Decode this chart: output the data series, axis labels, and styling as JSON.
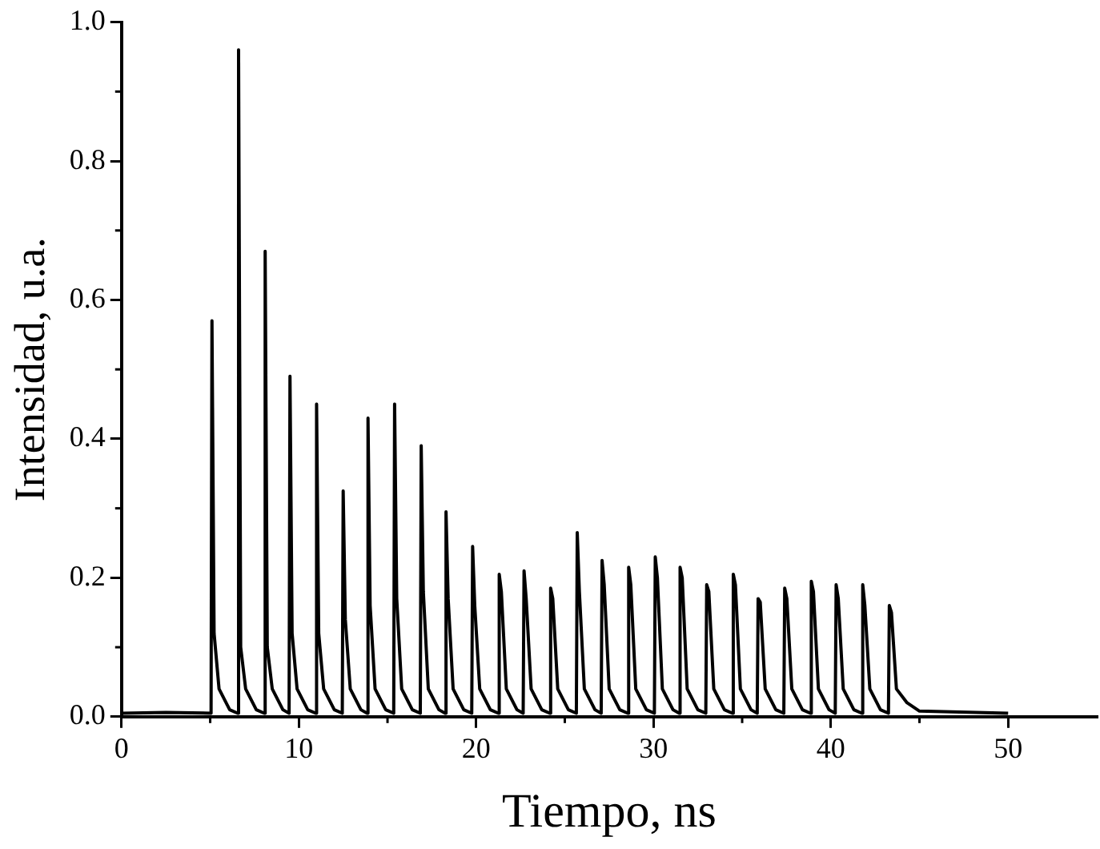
{
  "chart_data": {
    "type": "line",
    "xlabel": "Tiempo, ns",
    "ylabel": "Intensidad, u.a.",
    "xlim": [
      0,
      55
    ],
    "xticks": [
      0,
      10,
      20,
      30,
      40,
      50
    ],
    "ylim": [
      0,
      1.0
    ],
    "yticks": [
      {
        "value": 0,
        "label": "0.0"
      },
      {
        "value": 0.2,
        "label": "0.2"
      },
      {
        "value": 0.4,
        "label": "0.4"
      },
      {
        "value": 0.6,
        "label": "0.6"
      },
      {
        "value": 0.8,
        "label": "0.8"
      },
      {
        "value": 1,
        "label": "1.0"
      }
    ],
    "grid": false,
    "legend": false,
    "marker": "none",
    "line_style": "solid",
    "series": [
      {
        "color": "#000000",
        "x": [
          0,
          2.5,
          5.05,
          5.1,
          5.22,
          5.5,
          6.1,
          6.55,
          6.6,
          6.72,
          7.0,
          7.6,
          8.05,
          8.1,
          8.22,
          8.5,
          9.1,
          9.45,
          9.5,
          9.62,
          9.9,
          10.5,
          10.95,
          11.0,
          11.12,
          11.4,
          12.0,
          12.45,
          12.5,
          12.62,
          12.9,
          13.5,
          13.85,
          13.9,
          14.02,
          14.3,
          14.9,
          15.35,
          15.4,
          15.52,
          15.8,
          16.4,
          16.85,
          16.9,
          17.02,
          17.3,
          17.9,
          18.25,
          18.3,
          18.42,
          18.7,
          19.3,
          19.75,
          19.8,
          19.92,
          20.2,
          20.8,
          21.25,
          21.3,
          21.42,
          21.7,
          22.3,
          22.65,
          22.7,
          22.82,
          23.1,
          23.7,
          24.15,
          24.2,
          24.32,
          24.6,
          25.2,
          25.65,
          25.7,
          25.82,
          26.1,
          26.7,
          27.05,
          27.1,
          27.22,
          27.5,
          28.1,
          28.55,
          28.6,
          28.72,
          29.0,
          29.6,
          30.05,
          30.1,
          30.22,
          30.5,
          31.1,
          31.45,
          31.5,
          31.62,
          31.9,
          32.5,
          32.95,
          33.0,
          33.12,
          33.4,
          34.0,
          34.45,
          34.5,
          34.62,
          34.9,
          35.5,
          35.85,
          35.9,
          36.02,
          36.3,
          36.9,
          37.35,
          37.4,
          37.52,
          37.8,
          38.4,
          38.85,
          38.9,
          39.02,
          39.3,
          39.9,
          40.25,
          40.3,
          40.42,
          40.7,
          41.3,
          41.75,
          41.8,
          41.92,
          42.2,
          42.8,
          43.25,
          43.3,
          43.42,
          43.7,
          44.3,
          45,
          50
        ],
        "values": [
          0.005,
          0.006,
          0.005,
          0.57,
          0.12,
          0.04,
          0.01,
          0.005,
          0.96,
          0.1,
          0.04,
          0.01,
          0.005,
          0.67,
          0.1,
          0.04,
          0.01,
          0.005,
          0.49,
          0.12,
          0.04,
          0.01,
          0.005,
          0.45,
          0.12,
          0.04,
          0.01,
          0.005,
          0.325,
          0.14,
          0.04,
          0.01,
          0.005,
          0.43,
          0.16,
          0.04,
          0.01,
          0.005,
          0.45,
          0.17,
          0.04,
          0.01,
          0.005,
          0.39,
          0.18,
          0.04,
          0.01,
          0.005,
          0.295,
          0.17,
          0.04,
          0.01,
          0.005,
          0.245,
          0.16,
          0.04,
          0.01,
          0.005,
          0.205,
          0.18,
          0.04,
          0.01,
          0.005,
          0.21,
          0.17,
          0.04,
          0.01,
          0.005,
          0.185,
          0.17,
          0.04,
          0.01,
          0.005,
          0.265,
          0.18,
          0.04,
          0.01,
          0.005,
          0.225,
          0.19,
          0.04,
          0.01,
          0.005,
          0.215,
          0.19,
          0.04,
          0.01,
          0.005,
          0.23,
          0.2,
          0.04,
          0.01,
          0.005,
          0.215,
          0.2,
          0.04,
          0.01,
          0.005,
          0.19,
          0.18,
          0.04,
          0.01,
          0.005,
          0.205,
          0.19,
          0.04,
          0.01,
          0.005,
          0.17,
          0.165,
          0.04,
          0.01,
          0.005,
          0.185,
          0.17,
          0.04,
          0.01,
          0.005,
          0.195,
          0.18,
          0.04,
          0.01,
          0.005,
          0.19,
          0.17,
          0.04,
          0.01,
          0.005,
          0.19,
          0.16,
          0.04,
          0.01,
          0.005,
          0.16,
          0.15,
          0.04,
          0.02,
          0.008,
          0.005
        ]
      }
    ]
  }
}
